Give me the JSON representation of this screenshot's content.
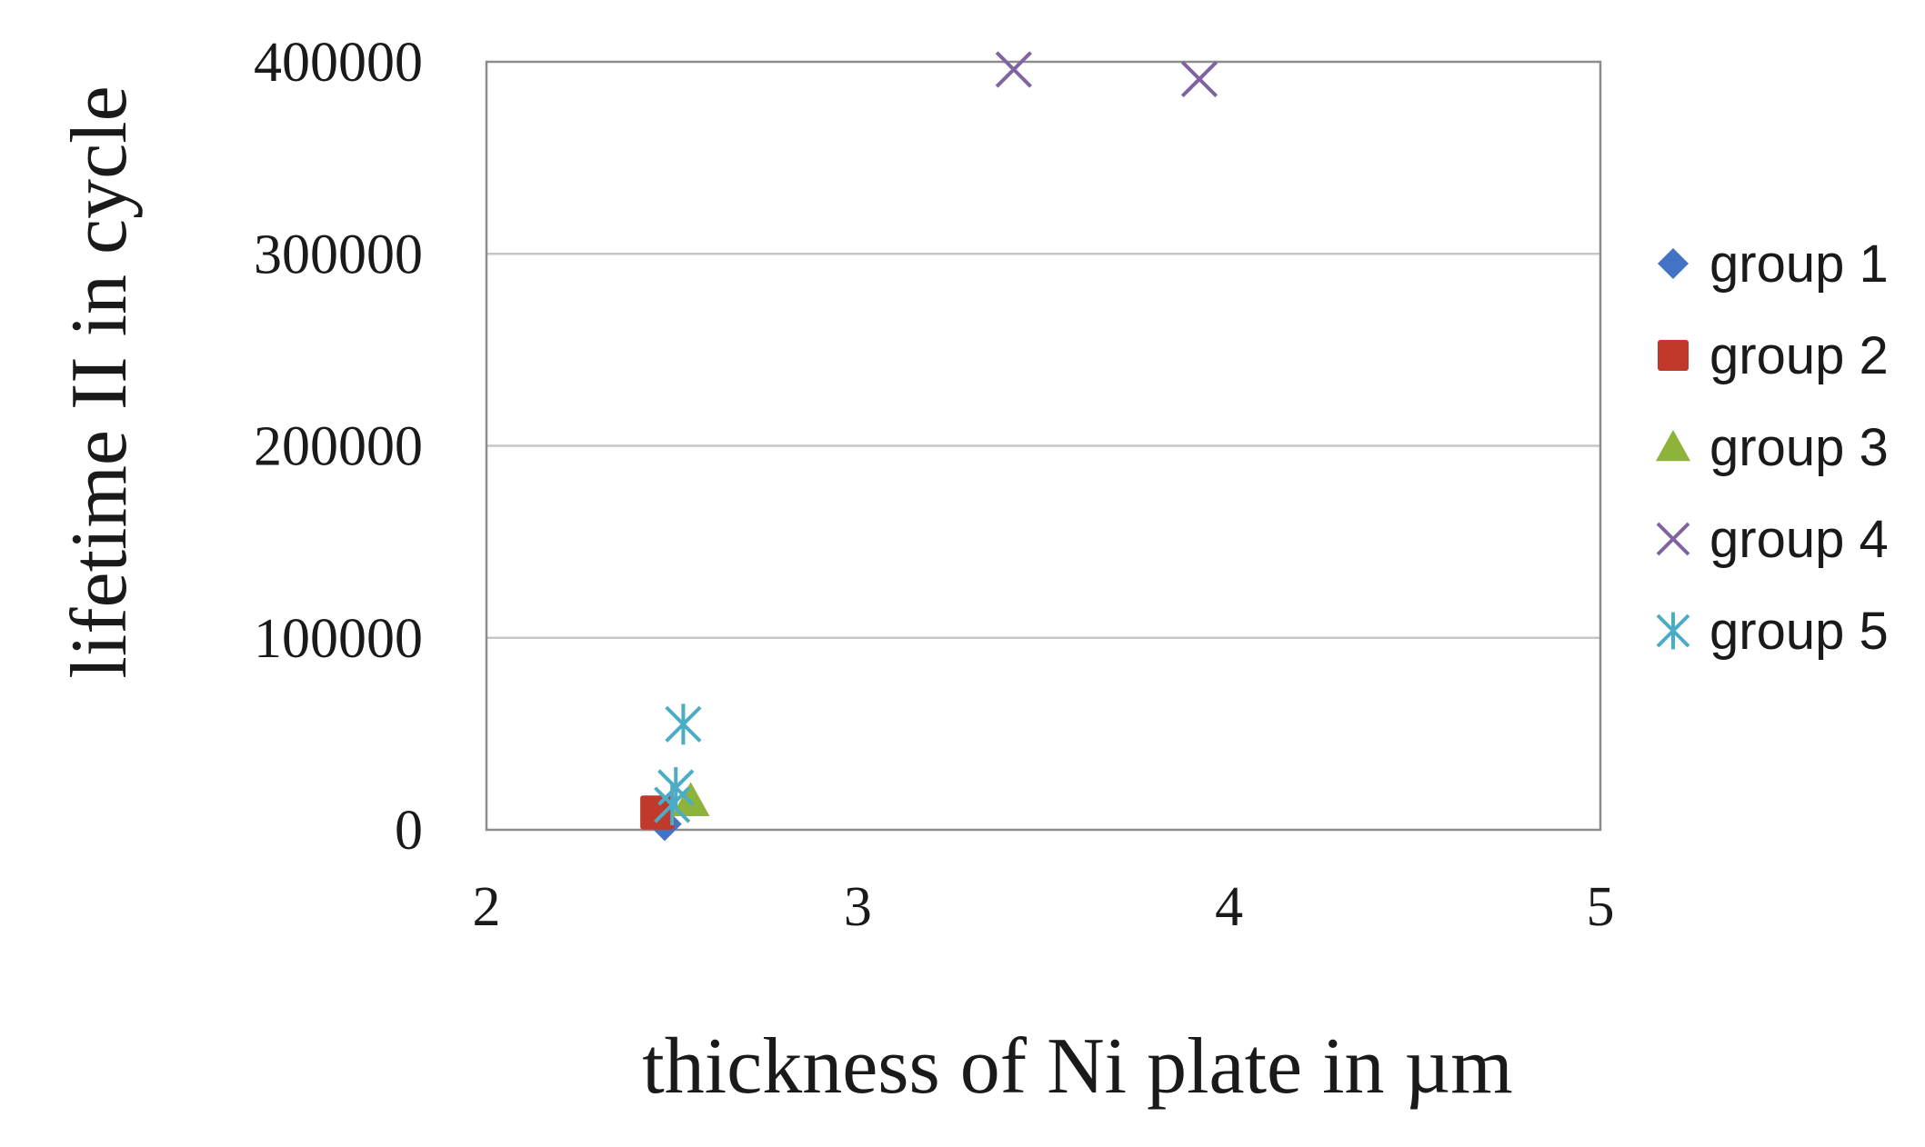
{
  "chart_data": {
    "type": "scatter",
    "title": "",
    "xlabel": "thickness of Ni plate in µm",
    "ylabel": "lifetime II in cycle",
    "xlim": [
      2,
      5
    ],
    "ylim": [
      0,
      400000
    ],
    "x_ticks": [
      "2",
      "3",
      "4",
      "5"
    ],
    "y_ticks": [
      "0",
      "100000",
      "200000",
      "300000",
      "400000"
    ],
    "grid": "horizontal",
    "legend_position": "right",
    "series": [
      {
        "name": "group 1",
        "marker": "diamond",
        "color": "#4472c4",
        "points": [
          {
            "x": 2.48,
            "y": 3000
          }
        ]
      },
      {
        "name": "group 2",
        "marker": "square",
        "color": "#c0392b",
        "points": [
          {
            "x": 2.46,
            "y": 9000
          }
        ]
      },
      {
        "name": "group 3",
        "marker": "triangle",
        "color": "#8db33a",
        "points": [
          {
            "x": 2.55,
            "y": 15000
          }
        ]
      },
      {
        "name": "group 4",
        "marker": "x",
        "color": "#8064a2",
        "points": [
          {
            "x": 3.42,
            "y": 396000
          },
          {
            "x": 3.92,
            "y": 391000
          }
        ]
      },
      {
        "name": "group 5",
        "marker": "star",
        "color": "#4bacc6",
        "points": [
          {
            "x": 2.53,
            "y": 55000
          },
          {
            "x": 2.51,
            "y": 22000
          },
          {
            "x": 2.5,
            "y": 13000
          }
        ]
      }
    ]
  }
}
